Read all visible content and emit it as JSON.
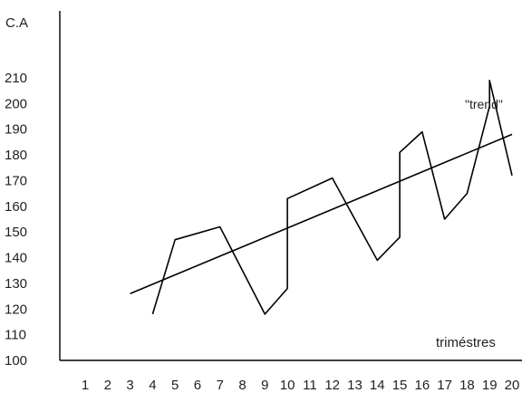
{
  "chart_data": {
    "type": "line",
    "ylabel": "C.A",
    "xlabel": "triméstres",
    "ylim": [
      100,
      210
    ],
    "yticks": [
      100,
      110,
      120,
      130,
      140,
      150,
      160,
      170,
      180,
      190,
      200,
      210
    ],
    "categories": [
      "1",
      "2",
      "3",
      "4",
      "5",
      "6",
      "7",
      "8",
      "9",
      "10",
      "11",
      "12",
      "13",
      "14",
      "15",
      "16",
      "17",
      "18",
      "19",
      "20"
    ],
    "series": [
      {
        "x": [
          4,
          5,
          7,
          9,
          10,
          10,
          12,
          14,
          15,
          15,
          16,
          17,
          18,
          19,
          19,
          20
        ],
        "values": [
          118,
          147,
          152,
          118,
          128,
          163,
          171,
          139,
          148,
          181,
          189,
          155,
          165,
          199,
          209,
          172
        ]
      },
      {
        "name": "\"trend\"",
        "x": [
          3,
          20
        ],
        "values": [
          126,
          188
        ]
      }
    ],
    "colors": {
      "line": "#000000",
      "axis": "#000000"
    }
  }
}
